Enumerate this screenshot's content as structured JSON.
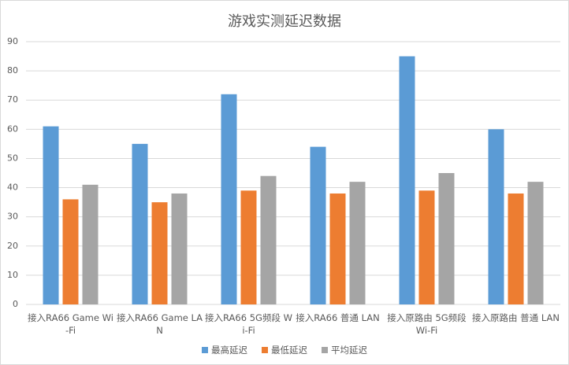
{
  "chart_data": {
    "type": "bar",
    "title": "游戏实测延迟数据",
    "categories": [
      "接入RA66 Game Wi-Fi",
      "接入RA66 Game LAN",
      "接入RA66 5G频段 Wi-Fi",
      "接入RA66 普通 LAN",
      "接入原路由 5G频段 Wi-Fi",
      "接入原路由 普通 LAN"
    ],
    "series": [
      {
        "name": "最高延迟",
        "color": "#5b9bd5",
        "values": [
          61,
          55,
          72,
          54,
          85,
          60
        ]
      },
      {
        "name": "最低延迟",
        "color": "#ed7d31",
        "values": [
          36,
          35,
          39,
          38,
          39,
          38
        ]
      },
      {
        "name": "平均延迟",
        "color": "#a5a5a5",
        "values": [
          41,
          38,
          44,
          42,
          45,
          42
        ]
      }
    ],
    "ylim": [
      0,
      90
    ],
    "yticks": [
      0,
      10,
      20,
      30,
      40,
      50,
      60,
      70,
      80,
      90
    ],
    "grid": true,
    "legend": "bottom"
  }
}
